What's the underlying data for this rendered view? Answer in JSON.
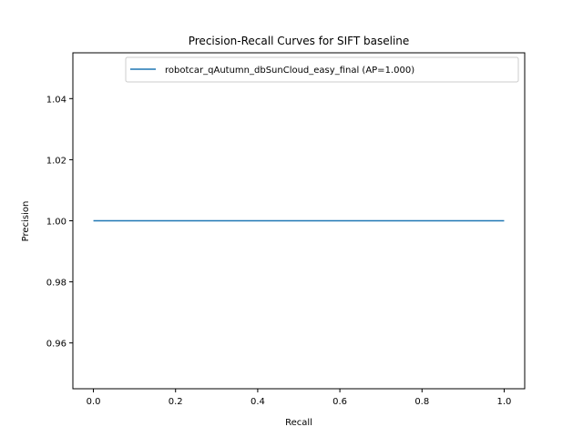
{
  "chart_data": {
    "type": "line",
    "title": "Precision-Recall Curves for SIFT baseline",
    "xlabel": "Recall",
    "ylabel": "Precision",
    "xlim": [
      -0.05,
      1.05
    ],
    "ylim": [
      0.945,
      1.055
    ],
    "xticks": [
      0.0,
      0.2,
      0.4,
      0.6,
      0.8,
      1.0
    ],
    "xtick_labels": [
      "0.0",
      "0.2",
      "0.4",
      "0.6",
      "0.8",
      "1.0"
    ],
    "yticks": [
      0.96,
      0.98,
      1.0,
      1.02,
      1.04
    ],
    "ytick_labels": [
      "0.96",
      "0.98",
      "1.00",
      "1.02",
      "1.04"
    ],
    "grid": false,
    "legend_position": "top-right",
    "series": [
      {
        "name": "robotcar_qAutumn_dbSunCloud_easy_final (AP=1.000)",
        "color": "#1f77b4",
        "x": [
          0.0,
          1.0
        ],
        "y": [
          1.0,
          1.0
        ]
      }
    ]
  }
}
